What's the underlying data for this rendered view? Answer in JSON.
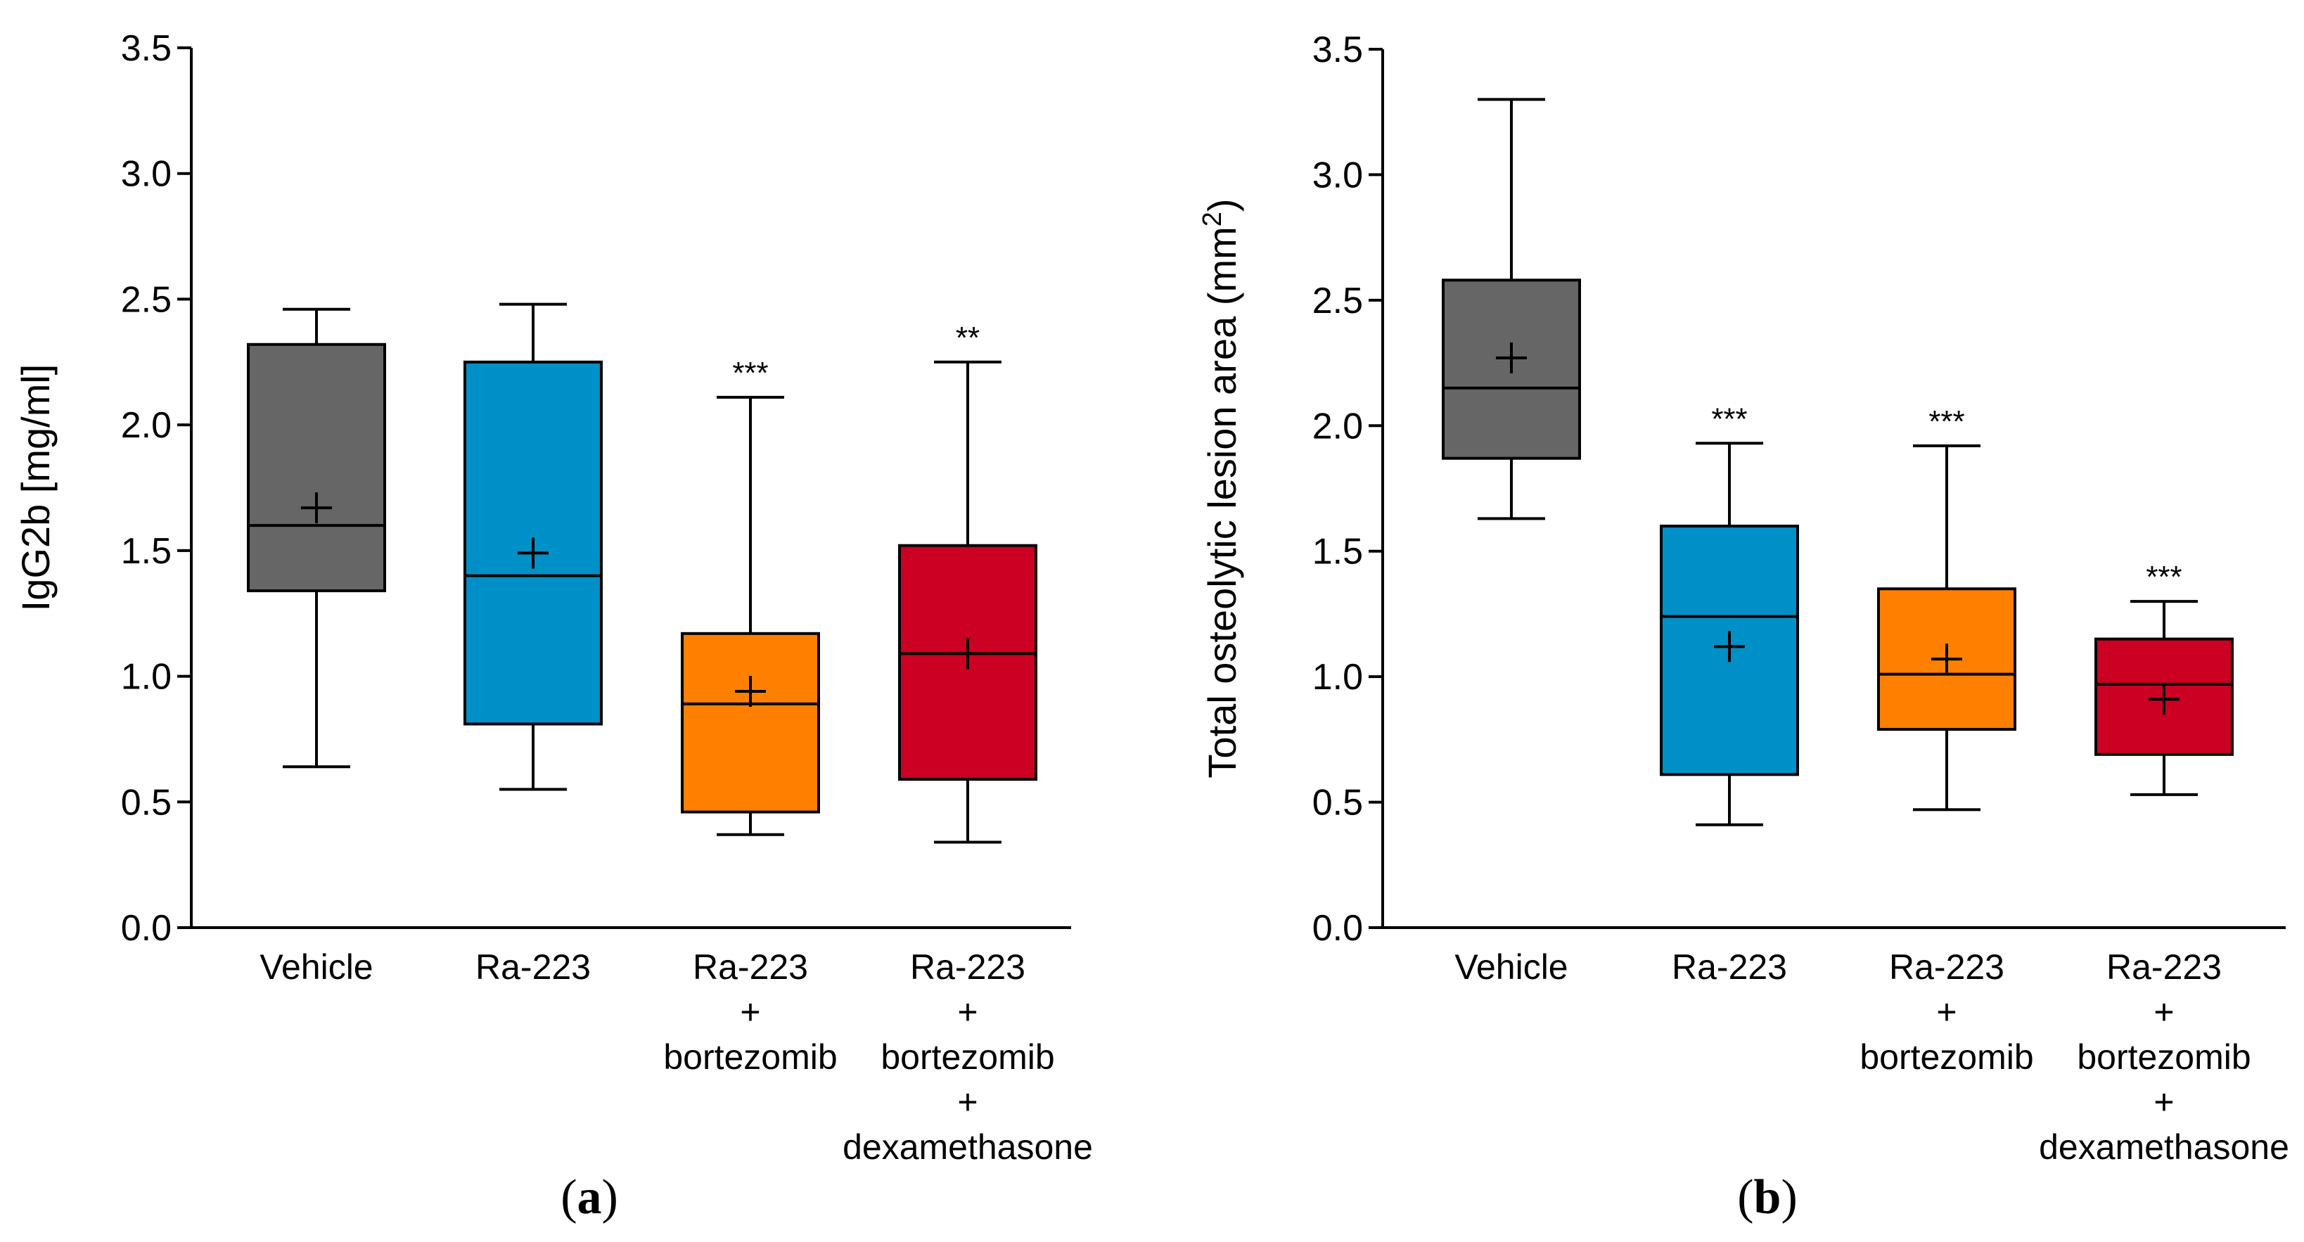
{
  "chart_data": [
    {
      "type": "box",
      "panel_label": "(a)",
      "panel_letter": "a",
      "ylabel": "IgG2b [mg/ml]",
      "ylim": [
        0,
        3.5
      ],
      "yticks": [
        "0.0",
        "0.5",
        "1.0",
        "1.5",
        "2.0",
        "2.5",
        "3.0",
        "3.5"
      ],
      "categories": [
        [
          "Vehicle"
        ],
        [
          "Ra-223"
        ],
        [
          "Ra-223",
          "+",
          "bortezomib"
        ],
        [
          "Ra-223",
          "+",
          "bortezomib",
          "+",
          "dexamethasone"
        ]
      ],
      "boxes": [
        {
          "name": "Vehicle",
          "color": "#666666",
          "whisker_low": 0.64,
          "q1": 1.34,
          "median": 1.6,
          "q3": 2.32,
          "whisker_high": 2.46,
          "mean": 1.67,
          "significance": ""
        },
        {
          "name": "Ra-223",
          "color": "#0090C8",
          "whisker_low": 0.55,
          "q1": 0.81,
          "median": 1.4,
          "q3": 2.25,
          "whisker_high": 2.48,
          "mean": 1.49,
          "significance": ""
        },
        {
          "name": "Ra-223 + bortezomib",
          "color": "#FF8000",
          "whisker_low": 0.37,
          "q1": 0.46,
          "median": 0.89,
          "q3": 1.17,
          "whisker_high": 2.11,
          "mean": 0.94,
          "significance": "***"
        },
        {
          "name": "Ra-223 + bortezomib + dexamethasone",
          "color": "#CC0022",
          "whisker_low": 0.34,
          "q1": 0.59,
          "median": 1.09,
          "q3": 1.52,
          "whisker_high": 2.25,
          "mean": 1.09,
          "significance": "**"
        }
      ]
    },
    {
      "type": "box",
      "panel_label": "(b)",
      "panel_letter": "b",
      "ylabel": "Total osteolytic lesion area (mm",
      "ylabel_sup": "2",
      "ylabel_end": ")",
      "ylim": [
        0,
        3.5
      ],
      "yticks": [
        "0.0",
        "0.5",
        "1.0",
        "1.5",
        "2.0",
        "2.5",
        "3.0",
        "3.5"
      ],
      "categories": [
        [
          "Vehicle"
        ],
        [
          "Ra-223"
        ],
        [
          "Ra-223",
          "+",
          "bortezomib"
        ],
        [
          "Ra-223",
          "+",
          "bortezomib",
          "+",
          "dexamethasone"
        ]
      ],
      "boxes": [
        {
          "name": "Vehicle",
          "color": "#666666",
          "whisker_low": 1.63,
          "q1": 1.87,
          "median": 2.15,
          "q3": 2.58,
          "whisker_high": 3.3,
          "mean": 2.27,
          "significance": ""
        },
        {
          "name": "Ra-223",
          "color": "#0090C8",
          "whisker_low": 0.41,
          "q1": 0.61,
          "median": 1.24,
          "q3": 1.6,
          "whisker_high": 1.93,
          "mean": 1.12,
          "significance": "***"
        },
        {
          "name": "Ra-223 + bortezomib",
          "color": "#FF8000",
          "whisker_low": 0.47,
          "q1": 0.79,
          "median": 1.01,
          "q3": 1.35,
          "whisker_high": 1.92,
          "mean": 1.07,
          "significance": "***"
        },
        {
          "name": "Ra-223 + bortezomib + dexamethasone",
          "color": "#CC0022",
          "whisker_low": 0.53,
          "q1": 0.69,
          "median": 0.97,
          "q3": 1.15,
          "whisker_high": 1.3,
          "mean": 0.91,
          "significance": "***"
        }
      ]
    }
  ]
}
